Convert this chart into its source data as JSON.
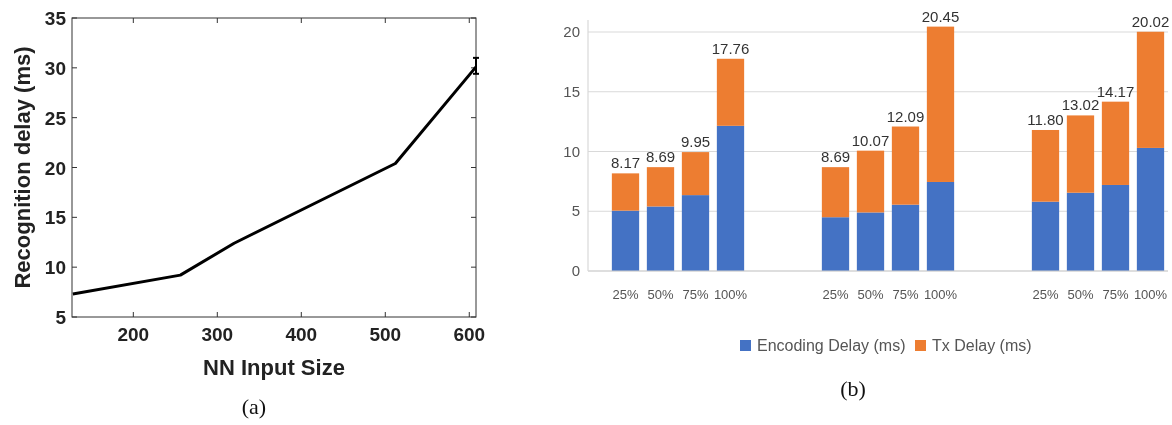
{
  "chart_data": [
    {
      "type": "line",
      "xlabel": "NN Input Size",
      "ylabel": "Recognition delay (ms)",
      "x": [
        128,
        256,
        320,
        512,
        608
      ],
      "series": [
        {
          "color": "#000000",
          "values": [
            7.3,
            9.2,
            12.4,
            20.4,
            30.1
          ],
          "errors": [
            null,
            null,
            null,
            null,
            [
              29.4,
              31.0
            ]
          ]
        }
      ],
      "xlim": [
        127,
        608
      ],
      "xticks": [
        200,
        300,
        400,
        500,
        600
      ],
      "ylim": [
        5,
        35
      ],
      "yticks": [
        5,
        10,
        15,
        20,
        25,
        30,
        35
      ],
      "grid": false,
      "annotations": [
        "(a)"
      ]
    },
    {
      "type": "bar",
      "stacked": true,
      "categories": [
        "25%",
        "50%",
        "75%",
        "100%",
        null,
        null,
        "25%",
        "50%",
        "75%",
        "100%",
        null,
        null,
        "25%",
        "50%",
        "75%",
        "100%"
      ],
      "series": [
        {
          "name": "Encoding Delay (ms)",
          "color": "#4472c4",
          "values": [
            5.05,
            5.4,
            6.35,
            12.15,
            null,
            null,
            4.5,
            4.9,
            5.55,
            7.45,
            null,
            null,
            5.8,
            6.55,
            7.2,
            10.3
          ]
        },
        {
          "name": "Tx Delay (ms)",
          "color": "#ed7d31",
          "values": [
            3.12,
            3.29,
            3.6,
            5.61,
            null,
            null,
            4.19,
            5.17,
            6.54,
            13.0,
            null,
            null,
            6.0,
            6.47,
            6.97,
            9.72
          ]
        }
      ],
      "totals": [
        "8.17",
        "8.69",
        "9.95",
        "17.76",
        null,
        null,
        "8.69",
        "10.07",
        "12.09",
        "20.45",
        null,
        null,
        "11.80",
        "13.02",
        "14.17",
        "20.02"
      ],
      "ylim": [
        0,
        21
      ],
      "yticks": [
        0,
        5,
        10,
        15,
        20
      ],
      "grid": "y",
      "legend": "bottom",
      "annotations": [
        "(b)"
      ]
    }
  ]
}
